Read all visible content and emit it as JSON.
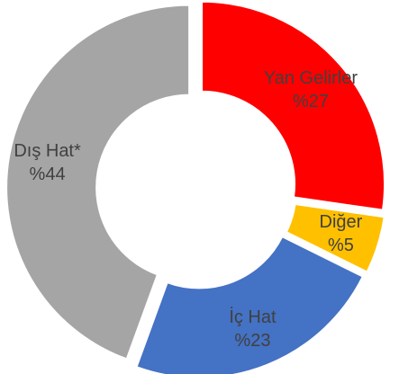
{
  "chart_data": {
    "type": "donut",
    "categories": [
      "Yan Gelirler",
      "Diğer",
      "İç Hat",
      "Dış Hat*"
    ],
    "values": [
      27,
      5,
      23,
      44
    ],
    "value_labels": [
      "%27",
      "%5",
      "%23",
      "%44"
    ],
    "colors": [
      "#ff0000",
      "#ffc000",
      "#4472c4",
      "#a5a5a5"
    ]
  }
}
